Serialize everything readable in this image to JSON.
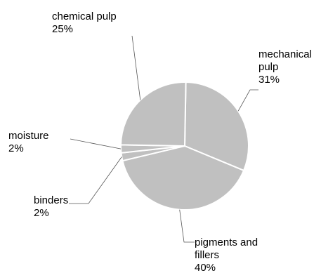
{
  "chart_data": {
    "type": "pie",
    "title": "",
    "slices": [
      {
        "name_lines": [
          "mechanical",
          "pulp"
        ],
        "value": 31,
        "label": "31%"
      },
      {
        "name_lines": [
          "pigments and",
          "fillers"
        ],
        "value": 40,
        "label": "40%"
      },
      {
        "name_lines": [
          "binders"
        ],
        "value": 2,
        "label": "2%"
      },
      {
        "name_lines": [
          "moisture"
        ],
        "value": 2,
        "label": "2%"
      },
      {
        "name_lines": [
          "chemical pulp"
        ],
        "value": 25,
        "label": "25%"
      }
    ],
    "colors": {
      "slice_fill": "#c0c0c0",
      "slice_border": "#ffffff",
      "leader_line": "#555555",
      "text": "#000000"
    },
    "legend": "none"
  }
}
